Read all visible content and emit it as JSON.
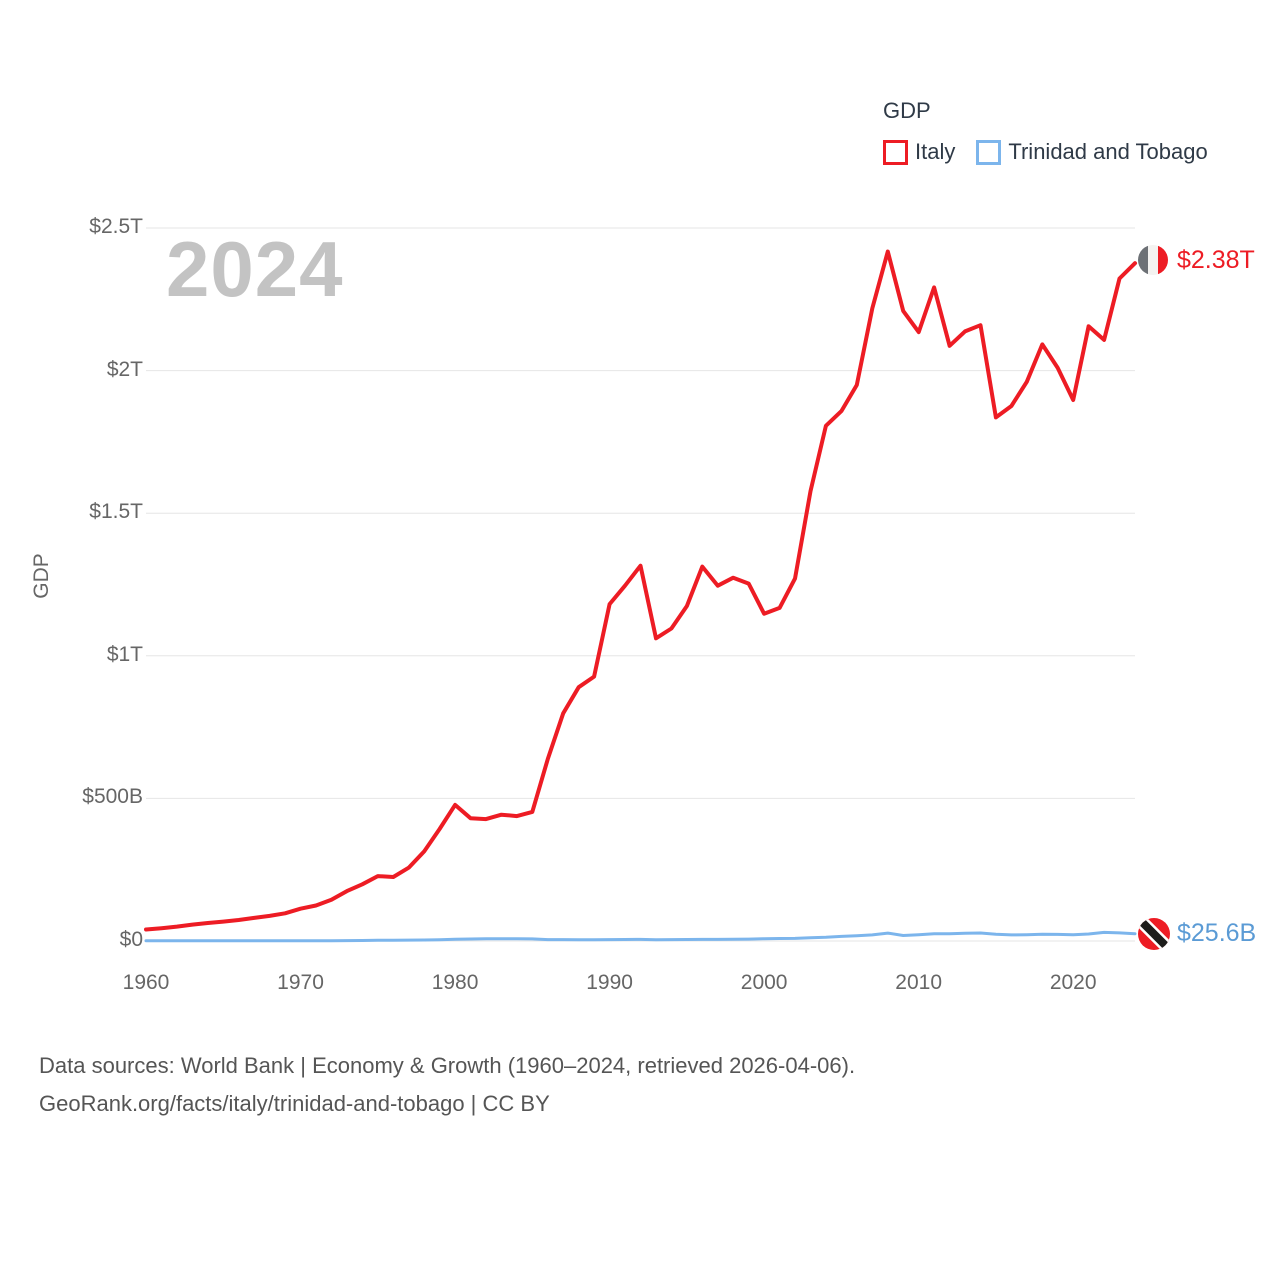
{
  "legend": {
    "title": "GDP",
    "items": [
      {
        "label": "Italy",
        "color": "#ed1c24"
      },
      {
        "label": "Trinidad and Tobago",
        "color": "#7cb5ec"
      }
    ]
  },
  "watermark_year": "2024",
  "y_axis_title": "GDP",
  "end_labels": {
    "italy": {
      "text": "$2.38T",
      "color": "#ed1c24"
    },
    "trinidad_and_tobago": {
      "text": "$25.6B",
      "color": "#5b9bd5"
    }
  },
  "footer": {
    "line1": "Data sources: World Bank | Economy & Growth (1960–2024, retrieved 2026-04-06).",
    "line2": "GeoRank.org/facts/italy/trinidad-and-tobago | CC BY"
  },
  "chart_data": {
    "type": "line",
    "title": "GDP",
    "xlabel": "",
    "ylabel": "GDP",
    "unit": "USD (current)",
    "grid": "horizontal-only",
    "legend_position": "top-right",
    "ylim_billions": [
      0,
      2500
    ],
    "x_range_years": [
      1960,
      2024
    ],
    "colors": {
      "grid": "#e6e6e6",
      "axis_text": "#666666",
      "watermark": "#c3c3c3"
    },
    "y_ticks": [
      {
        "value_billions": 0,
        "label": "$0"
      },
      {
        "value_billions": 500,
        "label": "$500B"
      },
      {
        "value_billions": 1000,
        "label": "$1T"
      },
      {
        "value_billions": 1500,
        "label": "$1.5T"
      },
      {
        "value_billions": 2000,
        "label": "$2T"
      },
      {
        "value_billions": 2500,
        "label": "$2.5T"
      }
    ],
    "x_ticks": [
      {
        "value": 1960,
        "label": "1960"
      },
      {
        "value": 1970,
        "label": "1970"
      },
      {
        "value": 1980,
        "label": "1980"
      },
      {
        "value": 1990,
        "label": "1990"
      },
      {
        "value": 2000,
        "label": "2000"
      },
      {
        "value": 2010,
        "label": "2010"
      },
      {
        "value": 2020,
        "label": "2020"
      }
    ],
    "x": [
      1960,
      1961,
      1962,
      1963,
      1964,
      1965,
      1966,
      1967,
      1968,
      1969,
      1970,
      1971,
      1972,
      1973,
      1974,
      1975,
      1976,
      1977,
      1978,
      1979,
      1980,
      1981,
      1982,
      1983,
      1984,
      1985,
      1986,
      1987,
      1988,
      1989,
      1990,
      1991,
      1992,
      1993,
      1994,
      1995,
      1996,
      1997,
      1998,
      1999,
      2000,
      2001,
      2002,
      2003,
      2004,
      2005,
      2006,
      2007,
      2008,
      2009,
      2010,
      2011,
      2012,
      2013,
      2014,
      2015,
      2016,
      2017,
      2018,
      2019,
      2020,
      2021,
      2022,
      2023,
      2024
    ],
    "series": [
      {
        "name": "Italy",
        "color": "#ed1c24",
        "end_label": "$2.38T",
        "values_billions": [
          40.4,
          44.8,
          50.4,
          57.6,
          63.2,
          67.9,
          73.6,
          81.1,
          87.9,
          97.1,
          113.4,
          124.6,
          144.4,
          174.9,
          198.9,
          227.4,
          224.3,
          256.9,
          314.2,
          392.7,
          477.3,
          430.7,
          427.3,
          443.0,
          437.9,
          452.7,
          638.1,
          798.4,
          889.9,
          926.9,
          1181.2,
          1245.9,
          1315.8,
          1061.4,
          1095.7,
          1174.7,
          1312.7,
          1245.8,
          1274.0,
          1253.3,
          1147.6,
          1167.9,
          1270.7,
          1577.2,
          1806.4,
          1858.1,
          1949.4,
          2218.1,
          2417.5,
          2209.5,
          2134.9,
          2291.8,
          2087.0,
          2137.6,
          2159.1,
          1835.9,
          1875.8,
          1960.8,
          2091.9,
          2009.4,
          1896.8,
          2155.4,
          2107.7,
          2323.0,
          2376.5
        ]
      },
      {
        "name": "Trinidad and Tobago",
        "color": "#7cb5ec",
        "end_label": "$25.6B",
        "values_billions": [
          0.54,
          0.6,
          0.63,
          0.66,
          0.7,
          0.72,
          0.74,
          0.78,
          0.81,
          0.83,
          0.82,
          0.9,
          1.03,
          1.31,
          1.84,
          2.44,
          2.5,
          3.14,
          3.56,
          4.6,
          6.24,
          6.99,
          8.14,
          7.77,
          7.73,
          7.38,
          4.79,
          4.79,
          4.48,
          4.32,
          5.07,
          5.31,
          5.44,
          4.58,
          4.95,
          5.33,
          5.76,
          5.74,
          6.05,
          6.8,
          8.15,
          8.83,
          9.01,
          11.31,
          12.99,
          15.98,
          18.37,
          21.54,
          27.87,
          19.2,
          22.16,
          25.68,
          25.31,
          27.26,
          28.14,
          23.56,
          21.55,
          22.21,
          23.81,
          23.22,
          21.59,
          24.46,
          30.05,
          28.34,
          25.6
        ]
      }
    ]
  }
}
